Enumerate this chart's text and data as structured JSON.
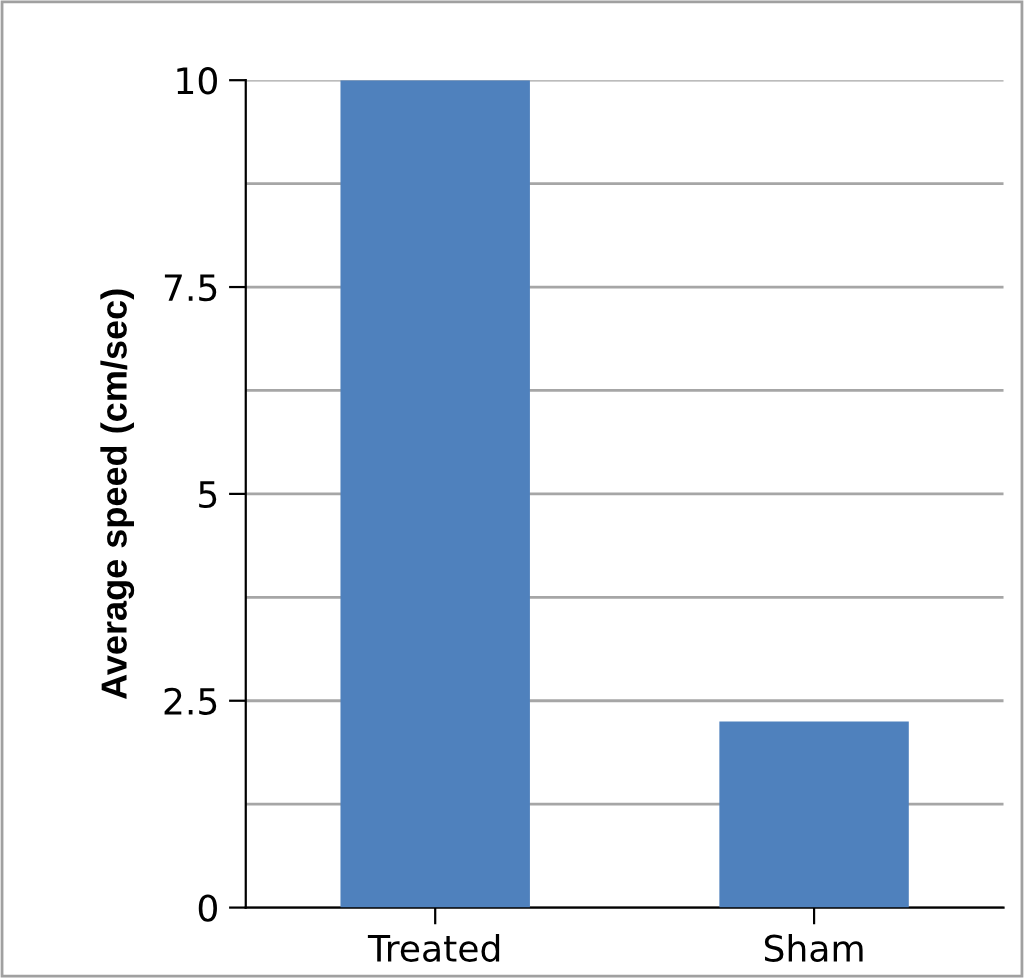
{
  "chart_data": {
    "type": "bar",
    "ylabel": "Average speed (cm/sec)",
    "categories": [
      "Treated",
      "Sham"
    ],
    "values": [
      10,
      2.25
    ],
    "color": "#4f81bd",
    "ylim": [
      0,
      10
    ],
    "yticks": [
      0,
      {
        "value": 1.25,
        "label": null
      },
      2.5,
      {
        "value": 3.75,
        "label": null
      },
      5,
      {
        "value": 6.25,
        "label": null
      },
      7.5,
      {
        "value": 8.75,
        "label": null
      },
      10
    ],
    "grid": "y"
  }
}
